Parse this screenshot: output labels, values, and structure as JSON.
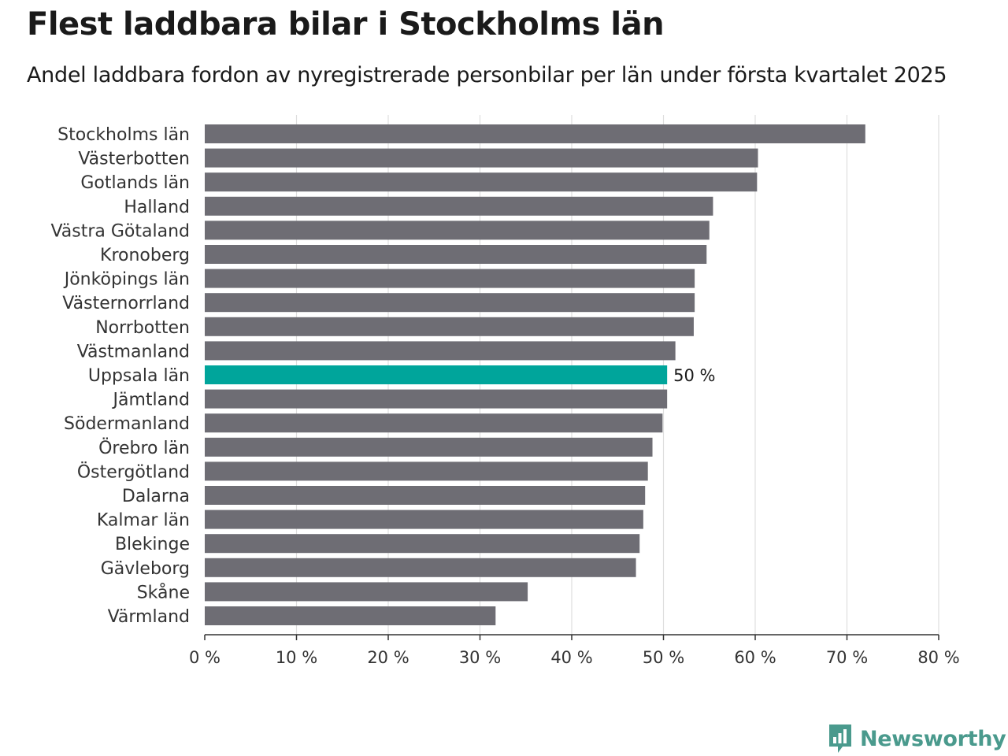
{
  "chart_data": {
    "type": "bar",
    "orientation": "horizontal",
    "title": "Flest laddbara bilar i Stockholms län",
    "subtitle": "Andel laddbara fordon av nyregistrerade personbilar per län under första kvartalet 2025",
    "categories": [
      "Stockholms län",
      "Västerbotten",
      "Gotlands län",
      "Halland",
      "Västra Götaland",
      "Kronoberg",
      "Jönköpings län",
      "Västernorrland",
      "Norrbotten",
      "Västmanland",
      "Uppsala län",
      "Jämtland",
      "Södermanland",
      "Örebro län",
      "Östergötland",
      "Dalarna",
      "Kalmar län",
      "Blekinge",
      "Gävleborg",
      "Skåne",
      "Värmland"
    ],
    "values": [
      72.0,
      60.3,
      60.2,
      55.4,
      55.0,
      54.7,
      53.4,
      53.4,
      53.3,
      51.3,
      50.4,
      50.4,
      49.9,
      48.8,
      48.3,
      48.0,
      47.8,
      47.4,
      47.0,
      35.2,
      31.7
    ],
    "highlight": {
      "category": "Uppsala län",
      "label": "50 %"
    },
    "xlim": [
      0,
      80
    ],
    "xticks": [
      0,
      10,
      20,
      30,
      40,
      50,
      60,
      70,
      80
    ],
    "tick_suffix": " %",
    "grid": "vertical",
    "colors": {
      "bar": "#6e6d74",
      "highlight": "#00a59b",
      "grid": "#dedede",
      "axis": "#333333"
    }
  },
  "brand": {
    "name": "Newsworthy",
    "color": "#4a9a8d",
    "icon": "newsworthy-logo-icon"
  }
}
